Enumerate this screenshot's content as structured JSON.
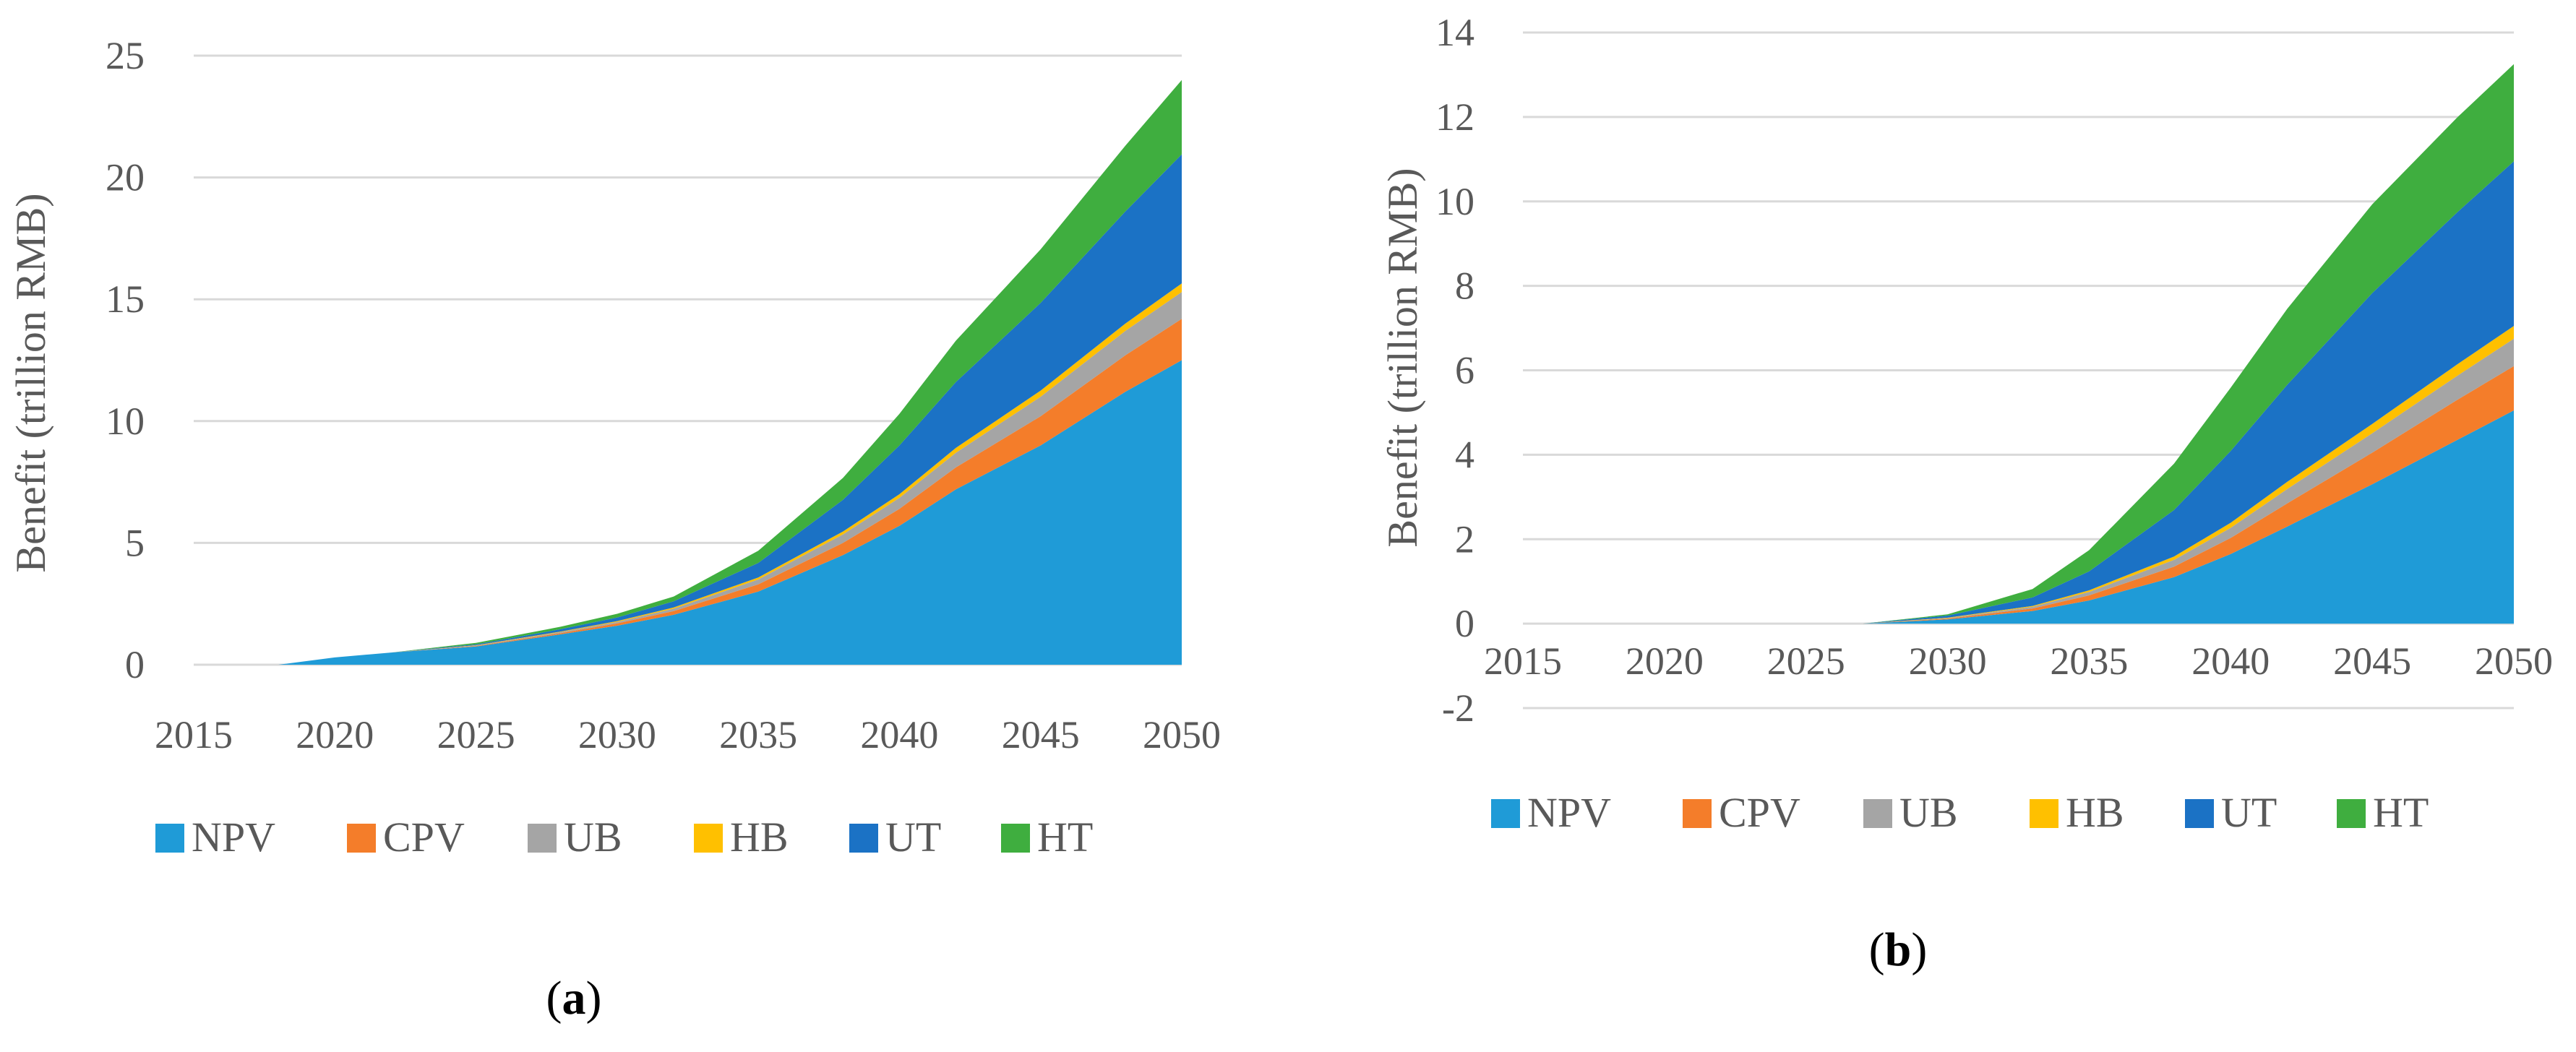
{
  "colors": {
    "NPV": "#1f9bd7",
    "CPV": "#f47d2a",
    "UB": "#a5a5a5",
    "HB": "#ffc000",
    "UT": "#1b72c5",
    "HT": "#3fae3f"
  },
  "chart_data": [
    {
      "type": "area",
      "stacked": true,
      "panel_label": "a",
      "ylabel": "Benefit (trillion RMB)",
      "xlabel": "",
      "xlim": [
        2015,
        2050
      ],
      "ylim": [
        0,
        25
      ],
      "x_ticks": [
        "2015",
        "2020",
        "2025",
        "2030",
        "2035",
        "2040",
        "2045",
        "2050"
      ],
      "y_ticks": [
        "0",
        "5",
        "10",
        "15",
        "20",
        "25"
      ],
      "grid": "horizontal",
      "legend_position": "bottom",
      "x": [
        2015,
        2018,
        2020,
        2022,
        2025,
        2028,
        2030,
        2032,
        2035,
        2038,
        2040,
        2042,
        2045,
        2048,
        2050
      ],
      "series": [
        {
          "name": "NPV",
          "values": [
            0,
            0,
            0.3,
            0.5,
            0.75,
            1.25,
            1.6,
            2.05,
            3.0,
            4.5,
            5.7,
            7.2,
            9.0,
            11.2,
            12.5
          ]
        },
        {
          "name": "CPV",
          "values": [
            0,
            0,
            0,
            0,
            0.02,
            0.05,
            0.1,
            0.15,
            0.3,
            0.5,
            0.7,
            0.9,
            1.2,
            1.5,
            1.7
          ]
        },
        {
          "name": "UB",
          "values": [
            0,
            0,
            0,
            0,
            0.02,
            0.04,
            0.06,
            0.1,
            0.2,
            0.35,
            0.45,
            0.6,
            0.8,
            1.0,
            1.1
          ]
        },
        {
          "name": "HB",
          "values": [
            0,
            0,
            0,
            0,
            0.01,
            0.02,
            0.03,
            0.05,
            0.08,
            0.12,
            0.15,
            0.2,
            0.25,
            0.3,
            0.35
          ]
        },
        {
          "name": "UT",
          "values": [
            0,
            0,
            0,
            0,
            0.04,
            0.1,
            0.15,
            0.25,
            0.6,
            1.3,
            2.0,
            2.7,
            3.6,
            4.6,
            5.3
          ]
        },
        {
          "name": "HT",
          "values": [
            0,
            0,
            0,
            0,
            0.06,
            0.1,
            0.15,
            0.2,
            0.5,
            0.9,
            1.3,
            1.7,
            2.2,
            2.7,
            3.05
          ]
        }
      ]
    },
    {
      "type": "area",
      "stacked": true,
      "panel_label": "b",
      "ylabel": "Benefit (trillion RMB)",
      "xlabel": "",
      "xlim": [
        2015,
        2050
      ],
      "ylim": [
        -2,
        14
      ],
      "x_ticks": [
        "2015",
        "2020",
        "2025",
        "2030",
        "2035",
        "2040",
        "2045",
        "2050"
      ],
      "y_ticks": [
        "-2",
        "0",
        "2",
        "4",
        "6",
        "8",
        "10",
        "12",
        "14"
      ],
      "grid": "horizontal",
      "legend_position": "bottom",
      "x": [
        2015,
        2027,
        2030,
        2033,
        2035,
        2038,
        2040,
        2042,
        2045,
        2048,
        2050
      ],
      "series": [
        {
          "name": "NPV",
          "values": [
            0,
            0,
            0.1,
            0.3,
            0.55,
            1.1,
            1.65,
            2.3,
            3.3,
            4.35,
            5.05
          ]
        },
        {
          "name": "CPV",
          "values": [
            0,
            0,
            0.02,
            0.06,
            0.12,
            0.25,
            0.38,
            0.55,
            0.75,
            0.95,
            1.05
          ]
        },
        {
          "name": "UB",
          "values": [
            0,
            0,
            0.01,
            0.04,
            0.08,
            0.16,
            0.24,
            0.34,
            0.46,
            0.57,
            0.65
          ]
        },
        {
          "name": "HB",
          "values": [
            0,
            0,
            0.01,
            0.02,
            0.04,
            0.08,
            0.12,
            0.17,
            0.22,
            0.27,
            0.3
          ]
        },
        {
          "name": "UT",
          "values": [
            0,
            0,
            0.05,
            0.2,
            0.45,
            1.1,
            1.7,
            2.3,
            3.1,
            3.6,
            3.9
          ]
        },
        {
          "name": "HT",
          "values": [
            0,
            0,
            0.03,
            0.2,
            0.5,
            1.1,
            1.5,
            1.8,
            2.1,
            2.25,
            2.3
          ]
        }
      ]
    }
  ]
}
